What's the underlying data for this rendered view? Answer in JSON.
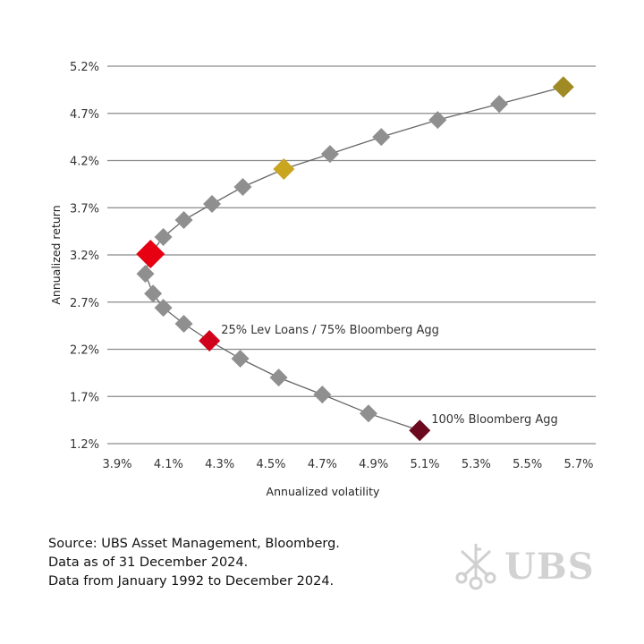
{
  "chart_data": {
    "type": "scatter",
    "xlabel": "Annualized volatility",
    "ylabel": "Annualized return",
    "xlim": [
      3.9,
      5.7
    ],
    "ylim": [
      1.2,
      5.2
    ],
    "x_ticks": [
      "3.9%",
      "4.1%",
      "4.3%",
      "4.5%",
      "4.7%",
      "4.9%",
      "5.1%",
      "5.3%",
      "5.5%",
      "5.7%"
    ],
    "y_ticks": [
      "1.2%",
      "1.7%",
      "2.2%",
      "2.7%",
      "3.2%",
      "3.7%",
      "4.2%",
      "4.7%",
      "5.2%"
    ],
    "grid": "horizontal",
    "connected": true,
    "points": [
      {
        "x": 5.08,
        "y": 1.34,
        "color": "#6b0a1e",
        "size": "medium"
      },
      {
        "x": 4.88,
        "y": 1.52,
        "color": "#8f8f8f",
        "size": "small"
      },
      {
        "x": 4.7,
        "y": 1.72,
        "color": "#8f8f8f",
        "size": "small"
      },
      {
        "x": 4.53,
        "y": 1.9,
        "color": "#8f8f8f",
        "size": "small"
      },
      {
        "x": 4.38,
        "y": 2.1,
        "color": "#8f8f8f",
        "size": "small"
      },
      {
        "x": 4.26,
        "y": 2.29,
        "color": "#d0021b",
        "size": "medium"
      },
      {
        "x": 4.16,
        "y": 2.47,
        "color": "#8f8f8f",
        "size": "small"
      },
      {
        "x": 4.08,
        "y": 2.64,
        "color": "#8f8f8f",
        "size": "small"
      },
      {
        "x": 4.04,
        "y": 2.79,
        "color": "#8f8f8f",
        "size": "small"
      },
      {
        "x": 4.01,
        "y": 3.0,
        "color": "#8f8f8f",
        "size": "small"
      },
      {
        "x": 4.03,
        "y": 3.21,
        "color": "#e60012",
        "size": "large"
      },
      {
        "x": 4.08,
        "y": 3.39,
        "color": "#8f8f8f",
        "size": "small"
      },
      {
        "x": 4.16,
        "y": 3.57,
        "color": "#8f8f8f",
        "size": "small"
      },
      {
        "x": 4.27,
        "y": 3.74,
        "color": "#8f8f8f",
        "size": "small"
      },
      {
        "x": 4.39,
        "y": 3.92,
        "color": "#8f8f8f",
        "size": "small"
      },
      {
        "x": 4.55,
        "y": 4.11,
        "color": "#c9a520",
        "size": "medium"
      },
      {
        "x": 4.73,
        "y": 4.27,
        "color": "#8f8f8f",
        "size": "small"
      },
      {
        "x": 4.93,
        "y": 4.45,
        "color": "#8f8f8f",
        "size": "small"
      },
      {
        "x": 5.15,
        "y": 4.63,
        "color": "#8f8f8f",
        "size": "small"
      },
      {
        "x": 5.39,
        "y": 4.8,
        "color": "#8f8f8f",
        "size": "small"
      },
      {
        "x": 5.64,
        "y": 4.98,
        "color": "#a08a24",
        "size": "medium"
      }
    ],
    "annotations": [
      {
        "text": "25% Lev Loans / 75% Bloomberg Agg",
        "point_index": 5
      },
      {
        "text": "100% Bloomberg Agg",
        "point_index": 0
      }
    ]
  },
  "footer": {
    "source_lines": [
      "Source: UBS Asset Management, Bloomberg.",
      "Data as of 31 December 2024.",
      "Data from January 1992 to December 2024."
    ],
    "logo_text": "UBS"
  }
}
